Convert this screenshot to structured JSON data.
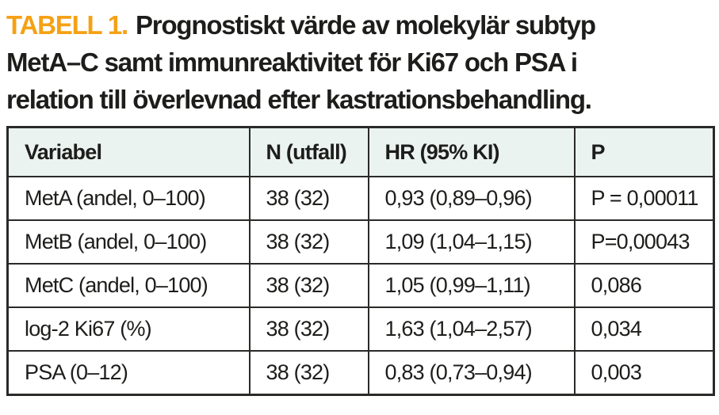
{
  "title": {
    "label": "TABELL 1.",
    "line1": "Prognostiskt värde av molekylär subtyp",
    "line2": "MetA–C samt immunreaktivitet för Ki67 och PSA i",
    "line3": "relation till överlevnad efter kastrationsbehandling."
  },
  "colors": {
    "accent_orange": "#F5A115",
    "header_background": "#EBF3F1",
    "border": "#2A2A28",
    "text": "#1D1D1B"
  },
  "table": {
    "headers": [
      "Variabel",
      "N (utfall)",
      "HR (95% KI)",
      "P"
    ],
    "rows": [
      [
        "MetA (andel, 0–100)",
        "38 (32)",
        "0,93 (0,89–0,96)",
        "P = 0,00011"
      ],
      [
        "MetB (andel, 0–100)",
        "38 (32)",
        "1,09 (1,04–1,15)",
        "P=0,00043"
      ],
      [
        "MetC (andel, 0–100)",
        "38 (32)",
        "1,05 (0,99–1,11)",
        "0,086"
      ],
      [
        "log-2 Ki67 (%)",
        "38 (32)",
        "1,63 (1,04–2,57)",
        "0,034"
      ],
      [
        "PSA (0–12)",
        "38 (32)",
        "0,83 (0,73–0,94)",
        "0,003"
      ]
    ]
  },
  "chart_data": {
    "type": "table",
    "title": "TABELL 1. Prognostiskt värde av molekylär subtyp MetA–C samt immunreaktivitet för Ki67 och PSA i relation till överlevnad efter kastrationsbehandling.",
    "columns": [
      "Variabel",
      "N (utfall)",
      "HR (95% KI)",
      "P"
    ],
    "rows": [
      [
        "MetA (andel, 0–100)",
        "38 (32)",
        "0,93 (0,89–0,96)",
        "P = 0,00011"
      ],
      [
        "MetB (andel, 0–100)",
        "38 (32)",
        "1,09 (1,04–1,15)",
        "P=0,00043"
      ],
      [
        "MetC (andel, 0–100)",
        "38 (32)",
        "1,05 (0,99–1,11)",
        "0,086"
      ],
      [
        "log-2 Ki67 (%)",
        "38 (32)",
        "1,63 (1,04–2,57)",
        "0,034"
      ],
      [
        "PSA (0–12)",
        "38 (32)",
        "0,83 (0,73–0,94)",
        "0,003"
      ]
    ]
  }
}
